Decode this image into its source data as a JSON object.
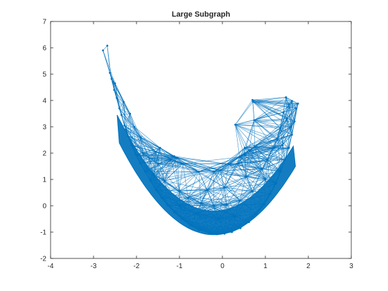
{
  "chart_data": {
    "type": "graph",
    "title": "Large Subgraph",
    "xlabel": "",
    "ylabel": "",
    "xlim": [
      -4,
      3
    ],
    "ylim": [
      -2,
      7
    ],
    "xticks": [
      "-4",
      "-3",
      "-2",
      "-1",
      "0",
      "1",
      "2",
      "3"
    ],
    "yticks": [
      "-2",
      "-1",
      "0",
      "1",
      "2",
      "3",
      "4",
      "5",
      "6",
      "7"
    ],
    "grid": false,
    "edge_color": "#0072BD",
    "node_color": "#0072BD",
    "nodes": [
      {
        "x": -2.78,
        "y": 5.9
      },
      {
        "x": -2.68,
        "y": 6.08
      },
      {
        "x": -2.62,
        "y": 5.05
      },
      {
        "x": -2.58,
        "y": 4.82
      },
      {
        "x": -2.55,
        "y": 4.7
      },
      {
        "x": -2.52,
        "y": 4.4
      },
      {
        "x": -2.5,
        "y": 4.65
      },
      {
        "x": -2.46,
        "y": 4.1
      },
      {
        "x": -2.4,
        "y": 3.7
      },
      {
        "x": -2.35,
        "y": 3.45
      },
      {
        "x": -2.28,
        "y": 3.05
      },
      {
        "x": -2.2,
        "y": 2.65
      },
      {
        "x": -2.12,
        "y": 2.3
      },
      {
        "x": -2.02,
        "y": 1.95
      },
      {
        "x": -1.92,
        "y": 1.62
      },
      {
        "x": -1.8,
        "y": 1.3
      },
      {
        "x": -1.68,
        "y": 0.95
      },
      {
        "x": -1.55,
        "y": 0.6
      },
      {
        "x": -1.42,
        "y": 0.3
      },
      {
        "x": -1.28,
        "y": 0.02
      },
      {
        "x": -1.12,
        "y": -0.25
      },
      {
        "x": -0.95,
        "y": -0.5
      },
      {
        "x": -0.75,
        "y": -0.75
      },
      {
        "x": -0.55,
        "y": -0.92
      },
      {
        "x": -0.3,
        "y": -1.05
      },
      {
        "x": -0.12,
        "y": -1.08
      },
      {
        "x": 0.05,
        "y": -1.06
      },
      {
        "x": 0.22,
        "y": -1.0
      },
      {
        "x": 0.42,
        "y": -0.85
      },
      {
        "x": 0.62,
        "y": -0.62
      },
      {
        "x": 0.8,
        "y": -0.3
      },
      {
        "x": 0.98,
        "y": 0.05
      },
      {
        "x": 1.12,
        "y": 0.45
      },
      {
        "x": 1.25,
        "y": 0.85
      },
      {
        "x": 1.36,
        "y": 1.3
      },
      {
        "x": 1.46,
        "y": 1.75
      },
      {
        "x": 1.55,
        "y": 2.2
      },
      {
        "x": 1.62,
        "y": 2.7
      },
      {
        "x": 1.68,
        "y": 3.2
      },
      {
        "x": 1.72,
        "y": 3.7
      },
      {
        "x": 1.76,
        "y": 3.88
      },
      {
        "x": 1.62,
        "y": 3.98
      },
      {
        "x": 1.48,
        "y": 4.12
      },
      {
        "x": 1.55,
        "y": 3.85
      },
      {
        "x": 1.42,
        "y": 3.55
      },
      {
        "x": 1.5,
        "y": 3.3
      },
      {
        "x": 1.35,
        "y": 2.95
      },
      {
        "x": 1.28,
        "y": 2.55
      },
      {
        "x": 1.2,
        "y": 2.2
      },
      {
        "x": 1.05,
        "y": 1.75
      },
      {
        "x": 0.92,
        "y": 1.4
      },
      {
        "x": 0.7,
        "y": 4.02
      },
      {
        "x": 0.71,
        "y": 3.95
      },
      {
        "x": 0.74,
        "y": 3.25
      },
      {
        "x": 0.3,
        "y": 3.08
      },
      {
        "x": 0.52,
        "y": 2.2
      },
      {
        "x": 0.62,
        "y": 2.1
      },
      {
        "x": 0.75,
        "y": 2.25
      },
      {
        "x": 0.5,
        "y": 1.95
      },
      {
        "x": 0.4,
        "y": 1.85
      },
      {
        "x": 0.35,
        "y": 1.6
      },
      {
        "x": 0.15,
        "y": 1.58
      },
      {
        "x": -0.05,
        "y": 1.35
      },
      {
        "x": -0.2,
        "y": 1.3
      },
      {
        "x": -0.55,
        "y": 1.3
      },
      {
        "x": -0.92,
        "y": 1.6
      },
      {
        "x": -1.05,
        "y": 1.82
      },
      {
        "x": -1.12,
        "y": 1.88
      },
      {
        "x": -1.2,
        "y": 1.75
      },
      {
        "x": -1.45,
        "y": 2.2
      },
      {
        "x": -1.55,
        "y": 2.05
      },
      {
        "x": -1.7,
        "y": 1.8
      },
      {
        "x": -1.9,
        "y": 2.6
      },
      {
        "x": -2.05,
        "y": 3.0
      },
      {
        "x": -2.15,
        "y": 3.5
      },
      {
        "x": -2.3,
        "y": 3.95
      },
      {
        "x": -1.6,
        "y": 1.2
      },
      {
        "x": -1.35,
        "y": 0.95
      },
      {
        "x": -1.0,
        "y": 0.55
      },
      {
        "x": -0.8,
        "y": 0.3
      },
      {
        "x": -0.5,
        "y": 0.1
      },
      {
        "x": -0.2,
        "y": 0.0
      },
      {
        "x": 0.1,
        "y": 0.05
      },
      {
        "x": 0.4,
        "y": 0.2
      },
      {
        "x": 0.7,
        "y": 0.55
      },
      {
        "x": 1.0,
        "y": 1.0
      },
      {
        "x": -0.6,
        "y": -0.3
      },
      {
        "x": -0.1,
        "y": -0.5
      },
      {
        "x": 0.3,
        "y": -0.4
      },
      {
        "x": -1.0,
        "y": 0.0
      },
      {
        "x": -2.25,
        "y": 2.9
      },
      {
        "x": -1.85,
        "y": 2.0
      },
      {
        "x": 1.6,
        "y": 3.0
      },
      {
        "x": 1.4,
        "y": 2.3
      },
      {
        "x": -0.35,
        "y": 0.6
      },
      {
        "x": 0.05,
        "y": 0.7
      },
      {
        "x": 0.55,
        "y": 1.1
      },
      {
        "x": -1.5,
        "y": 1.6
      }
    ]
  }
}
